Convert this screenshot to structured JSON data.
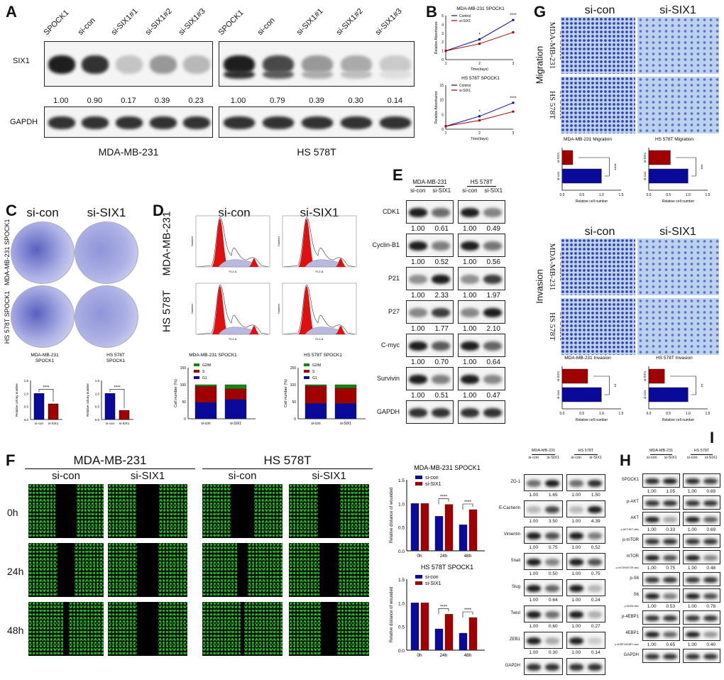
{
  "panel_labels": [
    "A",
    "B",
    "C",
    "D",
    "E",
    "F",
    "G",
    "H",
    "I"
  ],
  "panel_a": {
    "lanes": [
      [
        "SPOCK1",
        "si-con",
        "si-SIX1#1",
        "si-SIX1#2",
        "si-SIX1#3"
      ],
      [
        "SPOCK1",
        "si-con",
        "si-SIX1#1",
        "si-SIX1#2",
        "si-SIX1#3"
      ]
    ],
    "rows": [
      "SIX1",
      "GAPDH"
    ],
    "values": [
      [
        "1.00",
        "0.90",
        "0.17",
        "0.39",
        "0.23"
      ],
      [
        "1.00",
        "0.79",
        "0.39",
        "0.30",
        "0.14"
      ]
    ],
    "cell_lines": [
      "MDA-MB-231",
      "HS 578T"
    ]
  },
  "panel_b": {
    "charts": [
      {
        "title": "MDA-MB-231 SPOCK1",
        "ylabel": "Relative Absorbance",
        "xlabel": "Time(days)",
        "x": [
          1,
          2,
          3
        ],
        "yticks": [
          "0",
          "1",
          "2",
          "3",
          "4",
          "5"
        ],
        "ymax": 5,
        "series": [
          {
            "name": "Control",
            "values": [
              1,
              2.3,
              4.5
            ]
          },
          {
            "name": "si-SIX1",
            "values": [
              1,
              1.8,
              3.1
            ]
          }
        ],
        "sig": [
          "*",
          "****"
        ]
      },
      {
        "title": "HS 578T SPOCK1",
        "ylabel": "Relative Absorbance",
        "xlabel": "Time(days)",
        "x": [
          1,
          2,
          3
        ],
        "yticks": [
          "0",
          "5",
          "10",
          "15"
        ],
        "ymax": 15,
        "series": [
          {
            "name": "Control",
            "values": [
              1,
              4.4,
              9
            ]
          },
          {
            "name": "si-SIX1",
            "values": [
              1,
              3,
              6
            ]
          }
        ],
        "sig": [
          "*",
          "****"
        ]
      }
    ]
  },
  "panel_c": {
    "columns": [
      "si-con",
      "si-SIX1"
    ],
    "rows": [
      "MDA-MB-231 SPOCK1",
      "HS 578T SPOCK1"
    ],
    "charts": [
      {
        "title": [
          "MDA-MB-231",
          "SPOCK1"
        ],
        "ylabel": "Relative colony number",
        "categories": [
          "si-con",
          "si-SIX1"
        ],
        "values": [
          1.0,
          0.6
        ],
        "yticks": [
          "0.0",
          "0.5",
          "1.0",
          "1.5"
        ],
        "ymax": 1.5,
        "sig": "****"
      },
      {
        "title": [
          "HS 578T",
          "SPOCK1"
        ],
        "ylabel": "Relative colony number",
        "categories": [
          "si-con",
          "si-SIX1"
        ],
        "values": [
          1.0,
          0.35
        ],
        "yticks": [
          "0.0",
          "0.5",
          "1.0",
          "1.5"
        ],
        "ymax": 1.5,
        "sig": "****"
      }
    ]
  },
  "panel_d": {
    "columns": [
      "si-con",
      "si-SIX1"
    ],
    "rows": [
      "MDA-MB-231",
      "HS 578T"
    ],
    "hist_axis": "FL2-A",
    "hist_ylabel": "Number",
    "charts": [
      {
        "title": "MDA-MB-231 SPOCK1",
        "ylabel": "Cell number (%)",
        "categories": [
          "si-con",
          "si-SIX1"
        ],
        "yticks": [
          "0",
          "50",
          "100",
          "150"
        ],
        "ymax": 150,
        "legend": [
          "G2/M",
          "S",
          "G1"
        ],
        "series": {
          "G1": [
            48,
            57
          ],
          "S": [
            47,
            31
          ],
          "G2/M": [
            5,
            12
          ]
        }
      },
      {
        "title": "HS 578T SPOCK1",
        "ylabel": "Cell number (%)",
        "categories": [
          "si-con",
          "si-SIX1"
        ],
        "yticks": [
          "0",
          "50",
          "100",
          "150"
        ],
        "ymax": 150,
        "legend": [
          "G2/M",
          "S",
          "G1"
        ],
        "series": {
          "G1": [
            45,
            45
          ],
          "S": [
            51,
            45
          ],
          "G2/M": [
            4,
            10
          ]
        }
      }
    ]
  },
  "panel_e": {
    "groups": [
      "MDA-MB-231",
      "HS 578T"
    ],
    "lanes": [
      "si-con",
      "si-SIX1",
      "si-con",
      "si-SIX1"
    ],
    "rows": [
      {
        "label": "CDK1",
        "values": [
          "1.00",
          "0.61",
          "1.00",
          "0.49"
        ]
      },
      {
        "label": "Cyclin-B1",
        "values": [
          "1.00",
          "0.52",
          "1.00",
          "0.56"
        ]
      },
      {
        "label": "P21",
        "values": [
          "1.00",
          "2.33",
          "1.00",
          "1.97"
        ]
      },
      {
        "label": "P27",
        "values": [
          "1.00",
          "1.77",
          "1.00",
          "2.10"
        ]
      },
      {
        "label": "C-myc",
        "values": [
          "1.00",
          "0.70",
          "1.00",
          "0.64"
        ]
      },
      {
        "label": "Survivin",
        "values": [
          "1.00",
          "0.51",
          "1.00",
          "0.47"
        ]
      },
      {
        "label": "GAPDH"
      }
    ]
  },
  "panel_f": {
    "groups": [
      "MDA-MB-231",
      "HS 578T"
    ],
    "columns": [
      "si-con",
      "si-SIX1",
      "si-con",
      "si-SIX1"
    ],
    "times": [
      "0h",
      "24h",
      "48h"
    ],
    "charts": [
      {
        "title": "MDA-MB-231 SPOCK1",
        "ylabel": "Relative distance of wounded",
        "categories": [
          "0h",
          "24h",
          "48h"
        ],
        "yticks": [
          "0.0",
          "0.5",
          "1.0",
          "1.5"
        ],
        "ymax": 1.5,
        "series": [
          {
            "name": "si-con",
            "values": [
              1.0,
              0.73,
              0.55
            ]
          },
          {
            "name": "si-SIX1",
            "values": [
              1.0,
              0.98,
              0.87
            ]
          }
        ],
        "sig": [
          "",
          "****",
          "****"
        ]
      },
      {
        "title": "HS 578T SPOCK1",
        "ylabel": "Relative distance of wounded",
        "categories": [
          "0h",
          "24h",
          "48h"
        ],
        "yticks": [
          "0.0",
          "0.5",
          "1.0",
          "1.5"
        ],
        "ymax": 1.5,
        "series": [
          {
            "name": "si-con",
            "values": [
              1.0,
              0.45,
              0.36
            ]
          },
          {
            "name": "si-SIX1",
            "values": [
              1.0,
              0.76,
              0.69
            ]
          }
        ],
        "sig": [
          "",
          "****",
          "****"
        ]
      }
    ]
  },
  "panel_g": {
    "columns": [
      "si-con",
      "si-SIX1"
    ],
    "sections": [
      {
        "name": "Migration",
        "rows": [
          [
            "MDA-MB-231",
            "SPOCK1"
          ],
          [
            "HS 578T",
            "SPOCK1"
          ]
        ],
        "charts": [
          {
            "title": "MDA-MB-231 Migration",
            "categories": [
              "si-con",
              "si-SIX1"
            ],
            "values": [
              1.0,
              0.27
            ],
            "sig": "****"
          },
          {
            "title": "HS 578T Migration",
            "categories": [
              "si-con",
              "si-SIX1"
            ],
            "values": [
              1.0,
              0.55
            ],
            "sig": "***"
          }
        ]
      },
      {
        "name": "Invasion",
        "rows": [
          [
            "MDA-MB-231",
            "SPOCK1"
          ],
          [
            "HS 578T",
            "SPOCK1"
          ]
        ],
        "charts": [
          {
            "title": "MDA-MB-231 Invasion",
            "categories": [
              "si-con",
              "si-SIX1"
            ],
            "values": [
              1.0,
              0.65
            ],
            "sig": "**"
          },
          {
            "title": "HS 578T Invasion",
            "categories": [
              "si-con",
              "si-SIX1"
            ],
            "values": [
              1.0,
              0.4
            ],
            "sig": "**"
          }
        ]
      }
    ],
    "xlabel": "Relative cell number",
    "xticks": [
      "0.0",
      "0.5",
      "1.0",
      "1.5"
    ]
  },
  "panel_h": {
    "groups": [
      "MDA-MB-231",
      "HS 578T"
    ],
    "lanes": [
      "si-con",
      "si-SIX1",
      "si-con",
      "si-SIX1"
    ],
    "rows": [
      {
        "label": "ZO-1",
        "values": [
          "1.00",
          "1.65",
          "1.00",
          "1.50"
        ]
      },
      {
        "label": "E-Cacherin",
        "values": [
          "1.00",
          "3.50",
          "1.00",
          "4.39"
        ]
      },
      {
        "label": "Vimentin",
        "values": [
          "1.00",
          "0.75",
          "1.00",
          "0.52"
        ]
      },
      {
        "label": "Snail",
        "values": [
          "1.00",
          "0.50",
          "1.00",
          "0.75"
        ]
      },
      {
        "label": "Slug",
        "values": [
          "1.00",
          "0.64",
          "1.00",
          "0.24"
        ]
      },
      {
        "label": "Twist",
        "values": [
          "1.00",
          "0.60",
          "1.00",
          "0.27"
        ]
      },
      {
        "label": "ZEB1",
        "values": [
          "1.00",
          "0.30",
          "1.00",
          "0.14"
        ]
      },
      {
        "label": "GAPDH"
      }
    ]
  },
  "panel_i": {
    "groups": [
      "MDA-MB-231",
      "HS 578T"
    ],
    "lanes": [
      "si-con",
      "si-SIX1",
      "si-con",
      "si-SIX1"
    ],
    "rows": [
      {
        "label": "SPOCK1",
        "values": [
          "1.00",
          "1.05",
          "1.00",
          "0.89"
        ]
      },
      {
        "label": "p-AKT"
      },
      {
        "label": "AKT",
        "ratio": "p-AKT/AKT ratio",
        "values": [
          "1.00",
          "0.33",
          "1.00",
          "0.69"
        ]
      },
      {
        "label": "p-mTOR"
      },
      {
        "label": "mTOR",
        "ratio": "p-mTOR/MTOR ratio",
        "values": [
          "1.00",
          "0.75",
          "1.00",
          "0.48"
        ]
      },
      {
        "label": "p-S6"
      },
      {
        "label": "S6",
        "ratio": "p-S6/S6 ratio",
        "values": [
          "1.00",
          "0.53",
          "1.00",
          "0.78"
        ]
      },
      {
        "label": "p-4EBP1"
      },
      {
        "label": "4EBP1",
        "ratio": "p-4EBP1/4EBP1 ratio",
        "values": [
          "1.00",
          "0.65",
          "1.00",
          "0.40"
        ]
      },
      {
        "label": "GAPDH"
      }
    ]
  },
  "colors": {
    "blue": "#0a0a9a",
    "red": "#a00000",
    "green": "#118811",
    "purple": "#4a4ab8",
    "wound_green": "#30c030"
  }
}
